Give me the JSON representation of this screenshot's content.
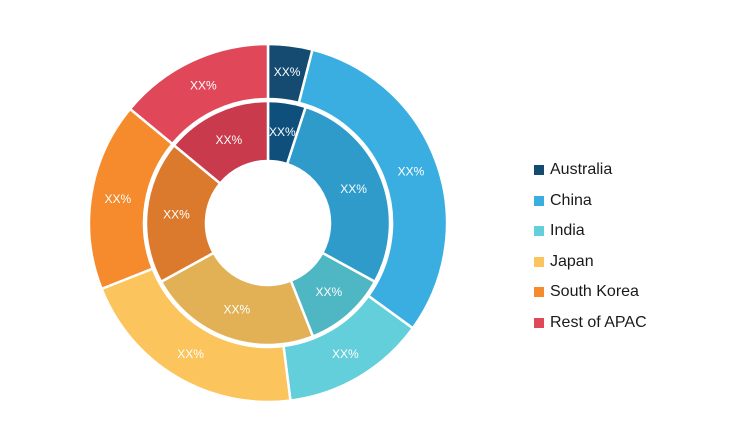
{
  "chart_data": {
    "type": "pie",
    "categories": [
      "Australia",
      "China",
      "India",
      "Japan",
      "South Korea",
      "Rest of APAC"
    ],
    "colors": {
      "outer": [
        "#154b70",
        "#3aaee0",
        "#62cfdb",
        "#fcc45d",
        "#f58b2d",
        "#e0485a"
      ],
      "inner": [
        "#0e4f7c",
        "#2e9bcb",
        "#4fb7c3",
        "#e2b055",
        "#db7a2c",
        "#c83a4c"
      ]
    },
    "series": [
      {
        "values": [
          4,
          31,
          13,
          21,
          17,
          14
        ],
        "labels": [
          "XX%",
          "XX%",
          "XX%",
          "XX%",
          "XX%",
          "XX%"
        ]
      },
      {
        "values": [
          5,
          28,
          11,
          23,
          19,
          14
        ],
        "labels": [
          "XX%",
          "XX%",
          "XX%",
          "XX%",
          "XX%",
          "XX%"
        ]
      }
    ],
    "legend_position": "right"
  }
}
